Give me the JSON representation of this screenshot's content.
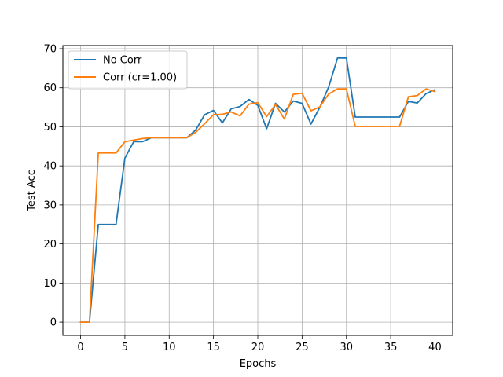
{
  "chart_data": {
    "type": "line",
    "title": "",
    "xlabel": "Epochs",
    "ylabel": "Test Acc",
    "xlim": [
      -2,
      42
    ],
    "ylim": [
      -3.4,
      70.8
    ],
    "xticks": [
      0,
      5,
      10,
      15,
      20,
      25,
      30,
      35,
      40
    ],
    "yticks": [
      0,
      10,
      20,
      30,
      40,
      50,
      60,
      70
    ],
    "grid": true,
    "legend": "upper-left",
    "x": [
      0,
      1,
      2,
      3,
      4,
      5,
      6,
      7,
      8,
      9,
      10,
      11,
      12,
      13,
      14,
      15,
      16,
      17,
      18,
      19,
      20,
      21,
      22,
      23,
      24,
      25,
      26,
      27,
      28,
      29,
      30,
      31,
      32,
      33,
      34,
      35,
      36,
      37,
      38,
      39,
      40
    ],
    "series": [
      {
        "name": "No Corr",
        "color": "#1f77b4",
        "values": [
          0,
          0,
          25,
          25,
          25,
          42,
          46.2,
          46.2,
          47.2,
          47.2,
          47.2,
          47.2,
          47.2,
          49.2,
          53.1,
          54.2,
          51,
          54.6,
          55.2,
          57,
          55.5,
          49.5,
          56,
          53.8,
          56.6,
          56,
          50.7,
          55,
          60.2,
          67.6,
          67.6,
          52.5,
          52.5,
          52.5,
          52.5,
          52.5,
          52.5,
          56.5,
          56.1,
          58.5,
          59.5
        ]
      },
      {
        "name": "Corr (cr=1.00)",
        "color": "#ff7f0e",
        "values": [
          0,
          0,
          43.3,
          43.3,
          43.3,
          46.2,
          46.6,
          47,
          47.2,
          47.2,
          47.2,
          47.2,
          47.2,
          48.6,
          50.8,
          53.1,
          53.2,
          53.8,
          52.8,
          55.8,
          56.2,
          52.6,
          55.7,
          52,
          58.3,
          58.6,
          54.1,
          55.1,
          58.4,
          59.7,
          59.7,
          50.1,
          50.1,
          50.1,
          50.1,
          50.1,
          50.1,
          57.7,
          58,
          59.7,
          59
        ]
      }
    ]
  }
}
